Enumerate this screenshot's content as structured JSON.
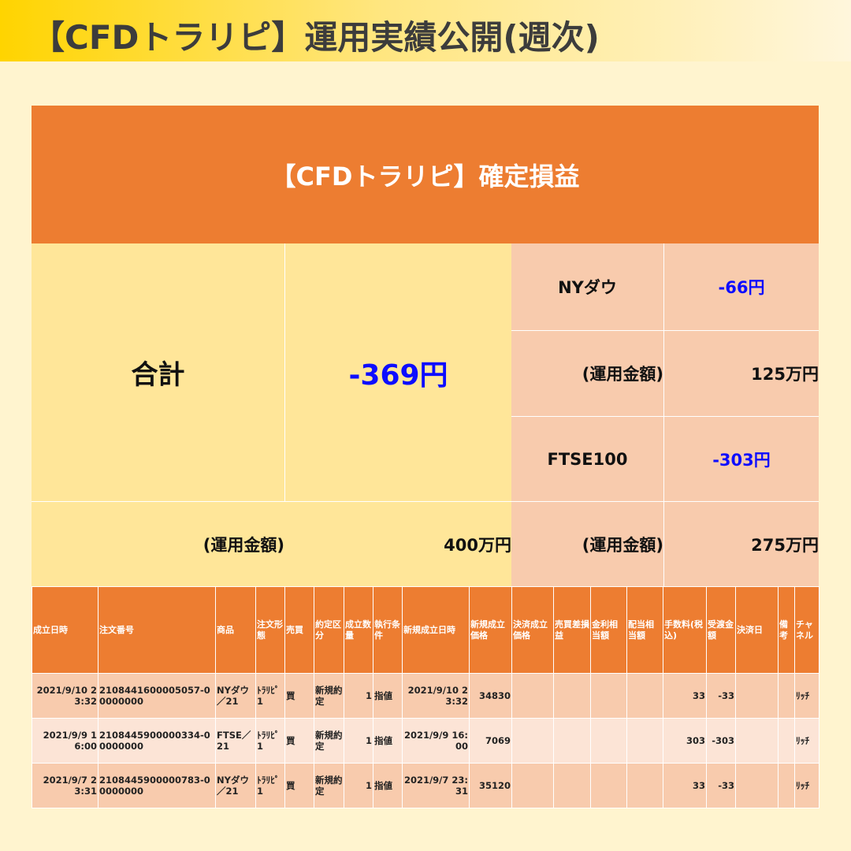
{
  "page_title": "【CFDトラリピ】運用実績公開(週次)",
  "banner_title": "【CFDトラリピ】確定損益",
  "total": {
    "label": "合計",
    "value": "-369円",
    "amount_label": "(運用金額)",
    "amount_value": "400万円"
  },
  "products": [
    {
      "name": "NYダウ",
      "pnl": "-66円",
      "amount_label": "(運用金額)",
      "amount_value": "125万円"
    },
    {
      "name": "FTSE100",
      "pnl": "-303円",
      "amount_label": "(運用金額)",
      "amount_value": "275万円"
    }
  ],
  "colors": {
    "orange": "#ed7d31",
    "yellow": "#ffe699",
    "peach": "#f8cbad",
    "light_peach": "#fce4d6",
    "blue": "#0d0dff"
  },
  "table": {
    "headers": [
      "成立日時",
      "注文番号",
      "商品",
      "注文形態",
      "売買",
      "約定区分",
      "成立数量",
      "執行条件",
      "新規成立日時",
      "新規成立価格",
      "決済成立価格",
      "売買差損益",
      "金利相当額",
      "配当相当額",
      "手数料(税込)",
      "受渡金額",
      "決済日",
      "備考",
      "チャネル"
    ],
    "rows": [
      [
        "2021/9/10 23:32",
        "2108441600005057-00000000",
        "NYダウ／21",
        "ﾄﾗﾘﾋﾟ1",
        "買",
        "新規約定",
        "1",
        "指値",
        "2021/9/10 23:32",
        "34830",
        "",
        "",
        "",
        "",
        "33",
        "-33",
        "",
        "",
        "ﾘｯﾁ"
      ],
      [
        "2021/9/9 16:00",
        "2108445900000334-00000000",
        "FTSE／21",
        "ﾄﾗﾘﾋﾟ1",
        "買",
        "新規約定",
        "1",
        "指値",
        "2021/9/9 16:00",
        "7069",
        "",
        "",
        "",
        "",
        "303",
        "-303",
        "",
        "",
        "ﾘｯﾁ"
      ],
      [
        "2021/9/7 23:31",
        "2108445900000783-00000000",
        "NYダウ／21",
        "ﾄﾗﾘﾋﾟ1",
        "買",
        "新規約定",
        "1",
        "指値",
        "2021/9/7 23:31",
        "35120",
        "",
        "",
        "",
        "",
        "33",
        "-33",
        "",
        "",
        "ﾘｯﾁ"
      ]
    ]
  }
}
